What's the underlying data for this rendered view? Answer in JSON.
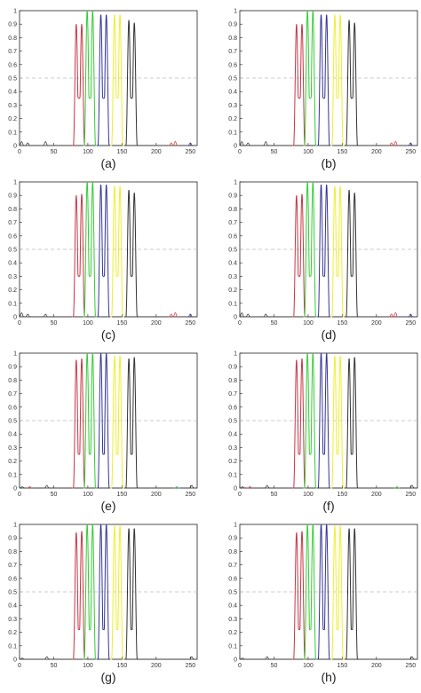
{
  "figure": {
    "panel_labels": [
      "(a)",
      "(b)",
      "(c)",
      "(d)",
      "(e)",
      "(f)",
      "(g)",
      "(h)"
    ]
  },
  "chart_data": [
    {
      "type": "line",
      "panel_label": "(a)",
      "xlim": [
        0,
        260
      ],
      "ylim": [
        0,
        1
      ],
      "xticks": [
        0,
        50,
        100,
        150,
        200,
        250
      ],
      "yticks": [
        0,
        0.1,
        0.2,
        0.3,
        0.4,
        0.5,
        0.6,
        0.7,
        0.8,
        0.9,
        1
      ],
      "threshold": 0.5,
      "series": [
        {
          "color": "#cc3344",
          "peaks": [
            [
              83,
              0.9
            ],
            [
              91,
              0.9
            ]
          ],
          "dip": 0.35
        },
        {
          "color": "#33cc33",
          "peaks": [
            [
              99,
              1.0
            ],
            [
              107,
              1.0
            ]
          ],
          "dip": 0.35
        },
        {
          "color": "#333399",
          "peaks": [
            [
              119,
              0.97
            ],
            [
              127,
              0.97
            ]
          ],
          "dip": 0.35
        },
        {
          "color": "#eeee33",
          "peaks": [
            [
              139,
              0.97
            ],
            [
              147,
              0.97
            ]
          ],
          "dip": 0.35
        },
        {
          "color": "#333333",
          "peaks": [
            [
              160,
              0.93
            ],
            [
              168,
              0.91
            ]
          ],
          "dip": 0.35
        }
      ],
      "noise": [
        [
          3,
          0.03,
          "#333333"
        ],
        [
          12,
          0.02,
          "#333333"
        ],
        [
          38,
          0.03,
          "#333333"
        ],
        [
          222,
          0.02,
          "#cc3344"
        ],
        [
          228,
          0.03,
          "#cc3344"
        ],
        [
          250,
          0.02,
          "#333399"
        ]
      ]
    },
    {
      "type": "line",
      "panel_label": "(b)",
      "xlim": [
        0,
        260
      ],
      "ylim": [
        0,
        1
      ],
      "xticks": [
        0,
        50,
        100,
        150,
        200,
        250
      ],
      "yticks": [
        0,
        0.1,
        0.2,
        0.3,
        0.4,
        0.5,
        0.6,
        0.7,
        0.8,
        0.9,
        1
      ],
      "threshold": 0.5,
      "series": [
        {
          "color": "#cc3344",
          "peaks": [
            [
              83,
              0.9
            ],
            [
              91,
              0.9
            ]
          ],
          "dip": 0.35
        },
        {
          "color": "#33cc33",
          "peaks": [
            [
              99,
              1.0
            ],
            [
              107,
              1.0
            ]
          ],
          "dip": 0.35
        },
        {
          "color": "#333399",
          "peaks": [
            [
              119,
              0.97
            ],
            [
              127,
              0.97
            ]
          ],
          "dip": 0.35
        },
        {
          "color": "#eeee33",
          "peaks": [
            [
              139,
              0.97
            ],
            [
              147,
              0.97
            ]
          ],
          "dip": 0.35
        },
        {
          "color": "#333333",
          "peaks": [
            [
              160,
              0.93
            ],
            [
              168,
              0.91
            ]
          ],
          "dip": 0.35
        }
      ],
      "noise": [
        [
          3,
          0.03,
          "#333333"
        ],
        [
          12,
          0.02,
          "#333333"
        ],
        [
          38,
          0.03,
          "#333333"
        ],
        [
          222,
          0.02,
          "#cc3344"
        ],
        [
          228,
          0.03,
          "#cc3344"
        ],
        [
          250,
          0.02,
          "#333399"
        ]
      ]
    },
    {
      "type": "line",
      "panel_label": "(c)",
      "xlim": [
        0,
        260
      ],
      "ylim": [
        0,
        1
      ],
      "xticks": [
        0,
        50,
        100,
        150,
        200,
        250
      ],
      "yticks": [
        0,
        0.1,
        0.2,
        0.3,
        0.4,
        0.5,
        0.6,
        0.7,
        0.8,
        0.9,
        1
      ],
      "threshold": 0.5,
      "series": [
        {
          "color": "#cc3344",
          "peaks": [
            [
              83,
              0.9
            ],
            [
              91,
              0.91
            ]
          ],
          "dip": 0.3
        },
        {
          "color": "#33cc33",
          "peaks": [
            [
              99,
              1.0
            ],
            [
              107,
              1.0
            ]
          ],
          "dip": 0.3
        },
        {
          "color": "#333399",
          "peaks": [
            [
              119,
              0.98
            ],
            [
              127,
              0.98
            ]
          ],
          "dip": 0.3
        },
        {
          "color": "#eeee33",
          "peaks": [
            [
              139,
              0.97
            ],
            [
              147,
              0.97
            ]
          ],
          "dip": 0.3
        },
        {
          "color": "#333333",
          "peaks": [
            [
              160,
              0.94
            ],
            [
              168,
              0.92
            ]
          ],
          "dip": 0.3
        }
      ],
      "noise": [
        [
          3,
          0.03,
          "#333333"
        ],
        [
          12,
          0.02,
          "#333333"
        ],
        [
          38,
          0.02,
          "#333333"
        ],
        [
          222,
          0.02,
          "#cc3344"
        ],
        [
          228,
          0.03,
          "#cc3344"
        ],
        [
          250,
          0.02,
          "#333399"
        ]
      ]
    },
    {
      "type": "line",
      "panel_label": "(d)",
      "xlim": [
        0,
        260
      ],
      "ylim": [
        0,
        1
      ],
      "xticks": [
        0,
        50,
        100,
        150,
        200,
        250
      ],
      "yticks": [
        0,
        0.1,
        0.2,
        0.3,
        0.4,
        0.5,
        0.6,
        0.7,
        0.8,
        0.9,
        1
      ],
      "threshold": 0.5,
      "series": [
        {
          "color": "#cc3344",
          "peaks": [
            [
              83,
              0.9
            ],
            [
              91,
              0.91
            ]
          ],
          "dip": 0.3
        },
        {
          "color": "#33cc33",
          "peaks": [
            [
              99,
              1.0
            ],
            [
              107,
              1.0
            ]
          ],
          "dip": 0.3
        },
        {
          "color": "#333399",
          "peaks": [
            [
              119,
              0.98
            ],
            [
              127,
              0.98
            ]
          ],
          "dip": 0.3
        },
        {
          "color": "#eeee33",
          "peaks": [
            [
              139,
              0.97
            ],
            [
              147,
              0.97
            ]
          ],
          "dip": 0.3
        },
        {
          "color": "#333333",
          "peaks": [
            [
              160,
              0.94
            ],
            [
              168,
              0.92
            ]
          ],
          "dip": 0.3
        }
      ],
      "noise": [
        [
          3,
          0.03,
          "#333333"
        ],
        [
          12,
          0.02,
          "#333333"
        ],
        [
          38,
          0.02,
          "#333333"
        ],
        [
          222,
          0.02,
          "#cc3344"
        ],
        [
          228,
          0.03,
          "#cc3344"
        ],
        [
          250,
          0.02,
          "#333399"
        ]
      ]
    },
    {
      "type": "line",
      "panel_label": "(e)",
      "xlim": [
        0,
        260
      ],
      "ylim": [
        0,
        1
      ],
      "xticks": [
        0,
        50,
        100,
        150,
        200,
        250
      ],
      "yticks": [
        0,
        0.1,
        0.2,
        0.3,
        0.4,
        0.5,
        0.6,
        0.7,
        0.8,
        0.9,
        1
      ],
      "threshold": 0.5,
      "series": [
        {
          "color": "#cc3344",
          "peaks": [
            [
              83,
              0.95
            ],
            [
              91,
              0.96
            ]
          ],
          "dip": 0.25
        },
        {
          "color": "#33cc33",
          "peaks": [
            [
              99,
              1.0
            ],
            [
              107,
              1.0
            ]
          ],
          "dip": 0.25
        },
        {
          "color": "#333399",
          "peaks": [
            [
              119,
              1.0
            ],
            [
              127,
              1.0
            ]
          ],
          "dip": 0.25
        },
        {
          "color": "#eeee33",
          "peaks": [
            [
              139,
              0.98
            ],
            [
              147,
              0.98
            ]
          ],
          "dip": 0.25
        },
        {
          "color": "#333333",
          "peaks": [
            [
              160,
              0.96
            ],
            [
              168,
              0.97
            ]
          ],
          "dip": 0.25
        }
      ],
      "noise": [
        [
          4,
          0.01,
          "#333333"
        ],
        [
          15,
          0.01,
          "#cc3344"
        ],
        [
          40,
          0.02,
          "#333333"
        ],
        [
          230,
          0.01,
          "#33cc33"
        ],
        [
          252,
          0.02,
          "#333333"
        ]
      ]
    },
    {
      "type": "line",
      "panel_label": "(f)",
      "xlim": [
        0,
        260
      ],
      "ylim": [
        0,
        1
      ],
      "xticks": [
        0,
        50,
        100,
        150,
        200,
        250
      ],
      "yticks": [
        0,
        0.1,
        0.2,
        0.3,
        0.4,
        0.5,
        0.6,
        0.7,
        0.8,
        0.9,
        1
      ],
      "threshold": 0.5,
      "series": [
        {
          "color": "#cc3344",
          "peaks": [
            [
              83,
              0.95
            ],
            [
              91,
              0.96
            ]
          ],
          "dip": 0.25
        },
        {
          "color": "#33cc33",
          "peaks": [
            [
              99,
              1.0
            ],
            [
              107,
              1.0
            ]
          ],
          "dip": 0.25
        },
        {
          "color": "#333399",
          "peaks": [
            [
              119,
              1.0
            ],
            [
              127,
              1.0
            ]
          ],
          "dip": 0.25
        },
        {
          "color": "#eeee33",
          "peaks": [
            [
              139,
              0.98
            ],
            [
              147,
              0.98
            ]
          ],
          "dip": 0.25
        },
        {
          "color": "#333333",
          "peaks": [
            [
              160,
              0.96
            ],
            [
              168,
              0.97
            ]
          ],
          "dip": 0.25
        }
      ],
      "noise": [
        [
          4,
          0.01,
          "#333333"
        ],
        [
          15,
          0.01,
          "#cc3344"
        ],
        [
          40,
          0.02,
          "#333333"
        ],
        [
          230,
          0.01,
          "#33cc33"
        ],
        [
          252,
          0.02,
          "#333333"
        ]
      ]
    },
    {
      "type": "line",
      "panel_label": "(g)",
      "xlim": [
        0,
        260
      ],
      "ylim": [
        0,
        1
      ],
      "xticks": [
        0,
        50,
        100,
        150,
        200,
        250
      ],
      "yticks": [
        0,
        0.1,
        0.2,
        0.3,
        0.4,
        0.5,
        0.6,
        0.7,
        0.8,
        0.9,
        1
      ],
      "threshold": 0.5,
      "series": [
        {
          "color": "#cc3344",
          "peaks": [
            [
              83,
              0.94
            ],
            [
              91,
              0.95
            ]
          ],
          "dip": 0.22
        },
        {
          "color": "#33cc33",
          "peaks": [
            [
              99,
              1.0
            ],
            [
              107,
              1.0
            ]
          ],
          "dip": 0.22
        },
        {
          "color": "#333399",
          "peaks": [
            [
              119,
              1.0
            ],
            [
              127,
              1.0
            ]
          ],
          "dip": 0.22
        },
        {
          "color": "#eeee33",
          "peaks": [
            [
              139,
              0.99
            ],
            [
              147,
              0.99
            ]
          ],
          "dip": 0.22
        },
        {
          "color": "#333333",
          "peaks": [
            [
              160,
              0.97
            ],
            [
              168,
              0.97
            ]
          ],
          "dip": 0.22
        }
      ],
      "noise": [
        [
          4,
          0.01,
          "#333333"
        ],
        [
          40,
          0.02,
          "#333333"
        ],
        [
          252,
          0.02,
          "#333333"
        ]
      ]
    },
    {
      "type": "line",
      "panel_label": "(h)",
      "xlim": [
        0,
        260
      ],
      "ylim": [
        0,
        1
      ],
      "xticks": [
        0,
        50,
        100,
        150,
        200,
        250
      ],
      "yticks": [
        0,
        0.1,
        0.2,
        0.3,
        0.4,
        0.5,
        0.6,
        0.7,
        0.8,
        0.9,
        1
      ],
      "threshold": 0.5,
      "series": [
        {
          "color": "#cc3344",
          "peaks": [
            [
              83,
              0.94
            ],
            [
              91,
              0.95
            ]
          ],
          "dip": 0.22
        },
        {
          "color": "#33cc33",
          "peaks": [
            [
              99,
              1.0
            ],
            [
              107,
              1.0
            ]
          ],
          "dip": 0.22
        },
        {
          "color": "#333399",
          "peaks": [
            [
              119,
              1.0
            ],
            [
              127,
              1.0
            ]
          ],
          "dip": 0.22
        },
        {
          "color": "#eeee33",
          "peaks": [
            [
              139,
              0.99
            ],
            [
              147,
              0.99
            ]
          ],
          "dip": 0.22
        },
        {
          "color": "#333333",
          "peaks": [
            [
              160,
              0.97
            ],
            [
              168,
              0.97
            ]
          ],
          "dip": 0.22
        }
      ],
      "noise": [
        [
          4,
          0.01,
          "#333333"
        ],
        [
          40,
          0.02,
          "#333333"
        ],
        [
          252,
          0.02,
          "#333333"
        ]
      ]
    }
  ]
}
